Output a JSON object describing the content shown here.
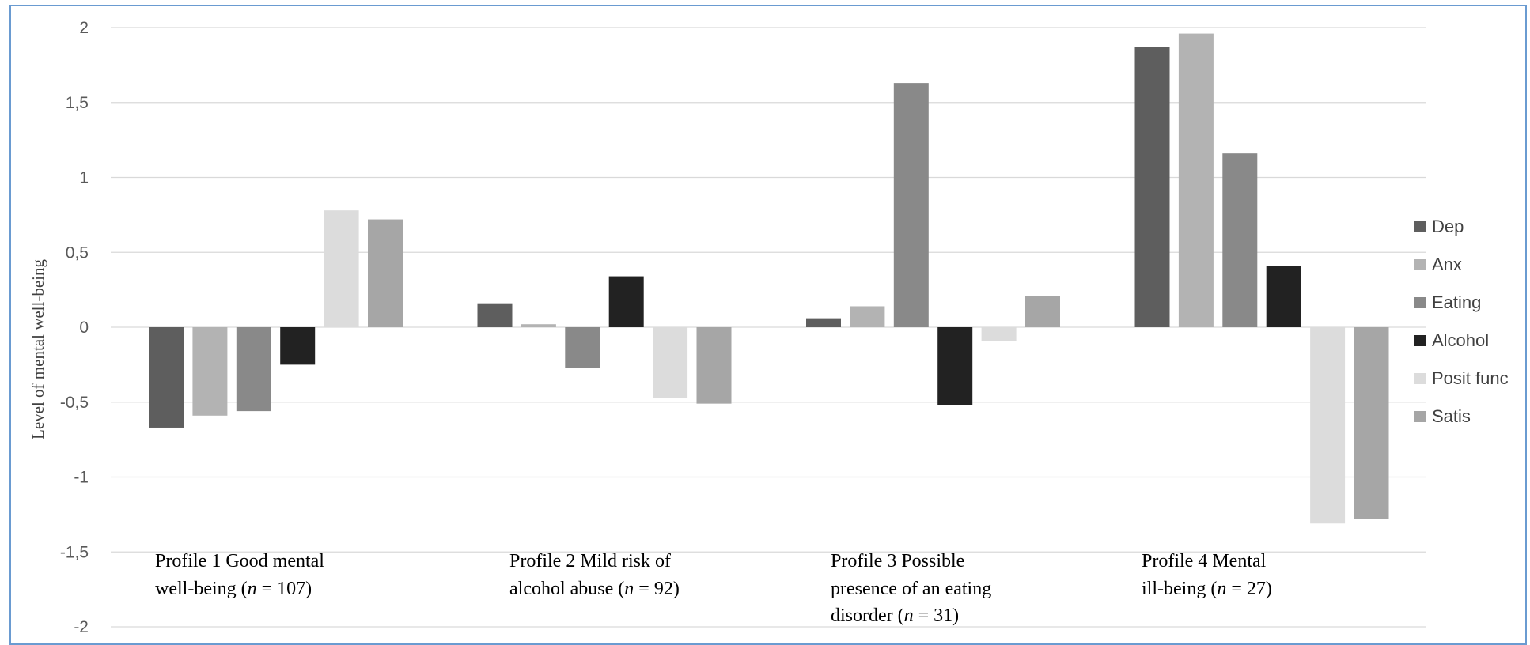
{
  "chart_data": {
    "type": "bar",
    "title": "",
    "ylabel": "Level of mental well-being",
    "xlabel": "",
    "ylim": [
      -2,
      2
    ],
    "yticks": [
      "2",
      "1,5",
      "1",
      "0,5",
      "0",
      "-0,5",
      "-1",
      "-1,5",
      "-2"
    ],
    "ytick_values": [
      2,
      1.5,
      1,
      0.5,
      0,
      -0.5,
      -1,
      -1.5,
      -2
    ],
    "grid": true,
    "legend_position": "right",
    "categories": [
      {
        "line1": "Profile 1 Good mental",
        "line2_pre": "well-being  (",
        "n_italic": "n",
        "line2_post": " = 107)",
        "line3": ""
      },
      {
        "line1": "Profile 2 Mild risk of",
        "line2_pre": "alcohol abuse (",
        "n_italic": "n",
        "line2_post": " = 92)",
        "line3": ""
      },
      {
        "line1": "Profile 3 Possible",
        "line2_pre": "presence of an eating",
        "n_italic": "",
        "line2_post": "",
        "line3_pre": "disorder (",
        "line3_italic": "n",
        "line3_post": " = 31)"
      },
      {
        "line1": "Profile 4 Mental",
        "line2_pre": "ill-being  (",
        "n_italic": "n",
        "line2_post": " = 27)",
        "line3": ""
      }
    ],
    "series": [
      {
        "name": "Dep",
        "color": "#5e5e5e",
        "values": [
          -0.67,
          0.16,
          0.06,
          1.87
        ]
      },
      {
        "name": "Anx",
        "color": "#b3b3b3",
        "values": [
          -0.59,
          0.02,
          0.14,
          1.96
        ]
      },
      {
        "name": "Eating",
        "color": "#898989",
        "values": [
          -0.56,
          -0.27,
          1.63,
          1.16
        ]
      },
      {
        "name": "Alcohol",
        "color": "#222222",
        "values": [
          -0.25,
          0.34,
          -0.52,
          0.41
        ]
      },
      {
        "name": "Posit func",
        "color": "#dcdcdc",
        "values": [
          0.78,
          -0.47,
          -0.09,
          -1.31
        ]
      },
      {
        "name": "Satis",
        "color": "#a6a6a6",
        "values": [
          0.72,
          -0.51,
          0.21,
          -1.28
        ]
      }
    ]
  }
}
